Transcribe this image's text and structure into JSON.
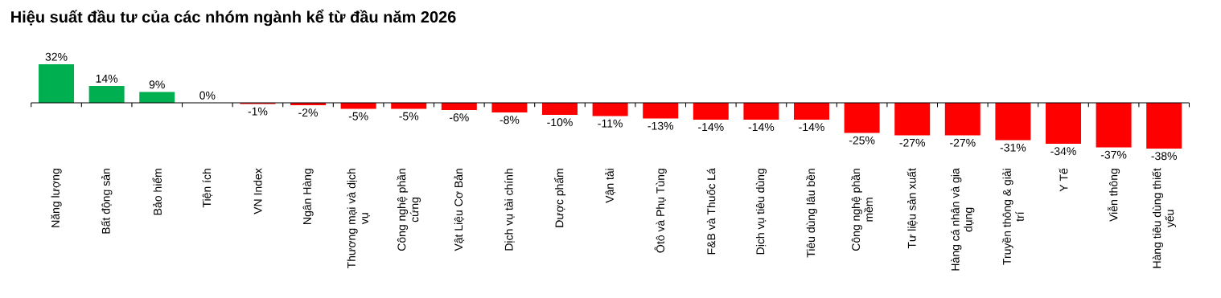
{
  "chart_data": {
    "type": "bar",
    "title": "Hiệu suất đầu tư của các nhóm ngành kể từ đầu năm 2026",
    "categories": [
      "Năng lượng",
      "Bất động sản",
      "Bảo hiểm",
      "Tiện ích",
      "VN Index",
      "Ngân Hàng",
      "Thương mại và dịch vụ",
      "Công nghệ phần cứng",
      "Vật Liệu Cơ Bản",
      "Dịch vụ tài chính",
      "Dược phẩm",
      "Vận tải",
      "Ôtô và Phụ Tùng",
      "F&B và Thuốc Lá",
      "Dịch vụ tiêu dùng",
      "Tiêu dùng lâu bền",
      "Công nghệ phần mềm",
      "Tư liệu sản xuất",
      "Hàng cá nhân và gia dụng",
      "Truyền thông & giải trí",
      "Y Tế",
      "Viễn thông",
      "Hàng tiêu dùng thiết yếu"
    ],
    "values": [
      32,
      14,
      9,
      0,
      -1,
      -2,
      -5,
      -5,
      -6,
      -8,
      -10,
      -11,
      -13,
      -14,
      -14,
      -14,
      -25,
      -27,
      -27,
      -31,
      -34,
      -37,
      -38
    ],
    "value_labels": [
      "32%",
      "14%",
      "9%",
      "0%",
      "-1%",
      "-2%",
      "-5%",
      "-5%",
      "-6%",
      "-8%",
      "-10%",
      "-11%",
      "-13%",
      "-14%",
      "-14%",
      "-14%",
      "-25%",
      "-27%",
      "-27%",
      "-31%",
      "-34%",
      "-37%",
      "-38%"
    ],
    "colors": [
      "#00b050",
      "#00b050",
      "#00b050",
      "#00b050",
      "#ff0000",
      "#ff0000",
      "#ff0000",
      "#ff0000",
      "#ff0000",
      "#ff0000",
      "#ff0000",
      "#ff0000",
      "#ff0000",
      "#ff0000",
      "#ff0000",
      "#ff0000",
      "#ff0000",
      "#ff0000",
      "#ff0000",
      "#ff0000",
      "#ff0000",
      "#ff0000",
      "#ff0000"
    ]
  }
}
